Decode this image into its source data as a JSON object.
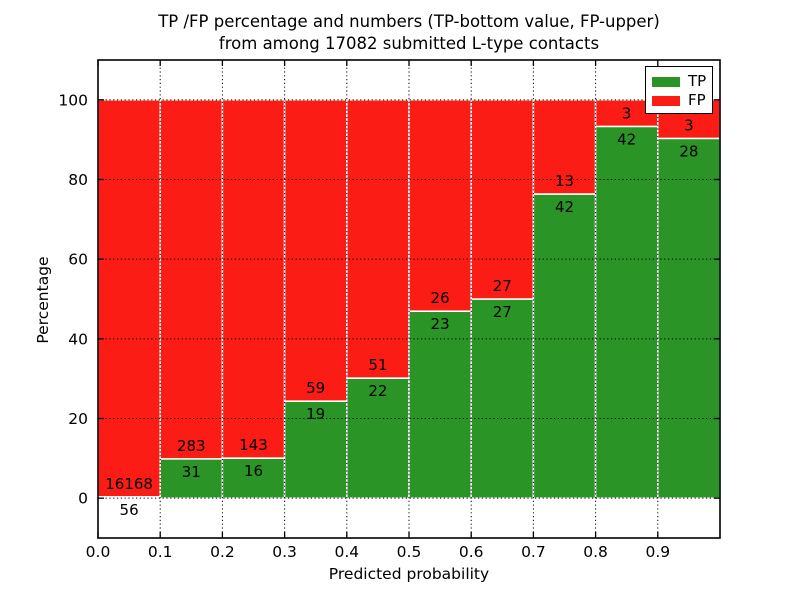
{
  "chart": {
    "title_line1": "TP /FP percentage and numbers (TP-bottom value, FP-upper)",
    "title_line2": "from among 17082 submitted L-type contacts",
    "xlabel": "Predicted probability",
    "ylabel": "Percentage"
  },
  "chart_data": {
    "type": "bar",
    "stacked": true,
    "title": "TP /FP percentage and numbers (TP-bottom value, FP-upper) from among 17082 submitted L-type contacts",
    "xlabel": "Predicted probability",
    "ylabel": "Percentage",
    "total_contacts": 17082,
    "xlim": [
      0.0,
      1.0
    ],
    "ylim": [
      -10,
      110
    ],
    "xtick_labels": [
      "0.0",
      "0.1",
      "0.2",
      "0.3",
      "0.4",
      "0.5",
      "0.6",
      "0.7",
      "0.8",
      "0.9"
    ],
    "ytick_values": [
      0,
      20,
      40,
      60,
      80,
      100
    ],
    "grid": "dotted-black",
    "bar_width": 0.1,
    "colors": {
      "tp": "#2b9426",
      "fp": "#fb1d15",
      "bar_edge": "#ffffff",
      "axes": "#000000"
    },
    "legend": {
      "position": "upper right",
      "entries": [
        {
          "label": "TP",
          "color": "#2b9426"
        },
        {
          "label": "FP",
          "color": "#fb1d15"
        }
      ]
    },
    "bins": [
      {
        "range": "0.0-0.1",
        "tp": 56,
        "fp": 16168,
        "tp_percent": 0.35
      },
      {
        "range": "0.1-0.2",
        "tp": 31,
        "fp": 283,
        "tp_percent": 9.87
      },
      {
        "range": "0.2-0.3",
        "tp": 16,
        "fp": 143,
        "tp_percent": 10.06
      },
      {
        "range": "0.3-0.4",
        "tp": 19,
        "fp": 59,
        "tp_percent": 24.36
      },
      {
        "range": "0.4-0.5",
        "tp": 22,
        "fp": 51,
        "tp_percent": 30.14
      },
      {
        "range": "0.5-0.6",
        "tp": 23,
        "fp": 26,
        "tp_percent": 46.94
      },
      {
        "range": "0.6-0.7",
        "tp": 27,
        "fp": 27,
        "tp_percent": 50.0
      },
      {
        "range": "0.7-0.8",
        "tp": 42,
        "fp": 13,
        "tp_percent": 76.36
      },
      {
        "range": "0.8-0.9",
        "tp": 42,
        "fp": 3,
        "tp_percent": 93.33
      },
      {
        "range": "0.9-1.0",
        "tp": 28,
        "fp": 3,
        "tp_percent": 90.32
      }
    ]
  }
}
